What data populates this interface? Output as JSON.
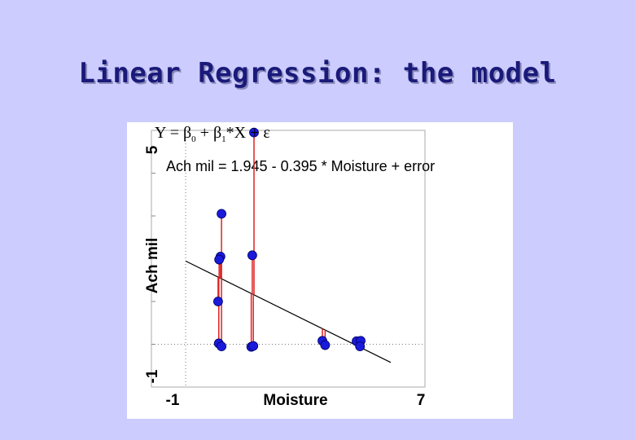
{
  "slide": {
    "title": "Linear Regression: the model"
  },
  "equation": {
    "y": "Y",
    "eq": "=",
    "beta": "β",
    "sub0": "0",
    "plus1": "+",
    "sub1": "1",
    "times_x": "*X",
    "plus2": "+",
    "epsilon": "ε"
  },
  "chart_data": {
    "type": "scatter",
    "annotation": "Ach mil = 1.945 - 0.395 * Moisture + error",
    "xlabel": "Moisture",
    "ylabel": "Ach mil",
    "xlim": [
      -1,
      7
    ],
    "ylim": [
      -1,
      5
    ],
    "x_tick_labels": [
      "-1",
      "7"
    ],
    "y_tick_labels": [
      "-1",
      "5"
    ],
    "reference_lines": {
      "x": 0,
      "y": 0
    },
    "regression": {
      "intercept": 1.945,
      "slope": -0.395,
      "x_range": [
        0,
        6
      ]
    },
    "points": [
      {
        "x": 1.05,
        "y": 3.05
      },
      {
        "x": 1.02,
        "y": 2.05
      },
      {
        "x": 0.98,
        "y": 1.98
      },
      {
        "x": 0.95,
        "y": 1.0
      },
      {
        "x": 0.97,
        "y": 0.02
      },
      {
        "x": 1.05,
        "y": -0.05
      },
      {
        "x": 2.0,
        "y": 4.95
      },
      {
        "x": 1.95,
        "y": 2.08
      },
      {
        "x": 1.92,
        "y": -0.06
      },
      {
        "x": 1.98,
        "y": -0.04
      },
      {
        "x": 4.0,
        "y": 0.08
      },
      {
        "x": 4.08,
        "y": -0.02
      },
      {
        "x": 5.0,
        "y": 0.07
      },
      {
        "x": 5.12,
        "y": 0.08
      },
      {
        "x": 5.1,
        "y": -0.05
      }
    ],
    "colors": {
      "point": "#1a1adb",
      "residual": "#dd2222",
      "line": "#000000",
      "reference": "#777777"
    }
  }
}
